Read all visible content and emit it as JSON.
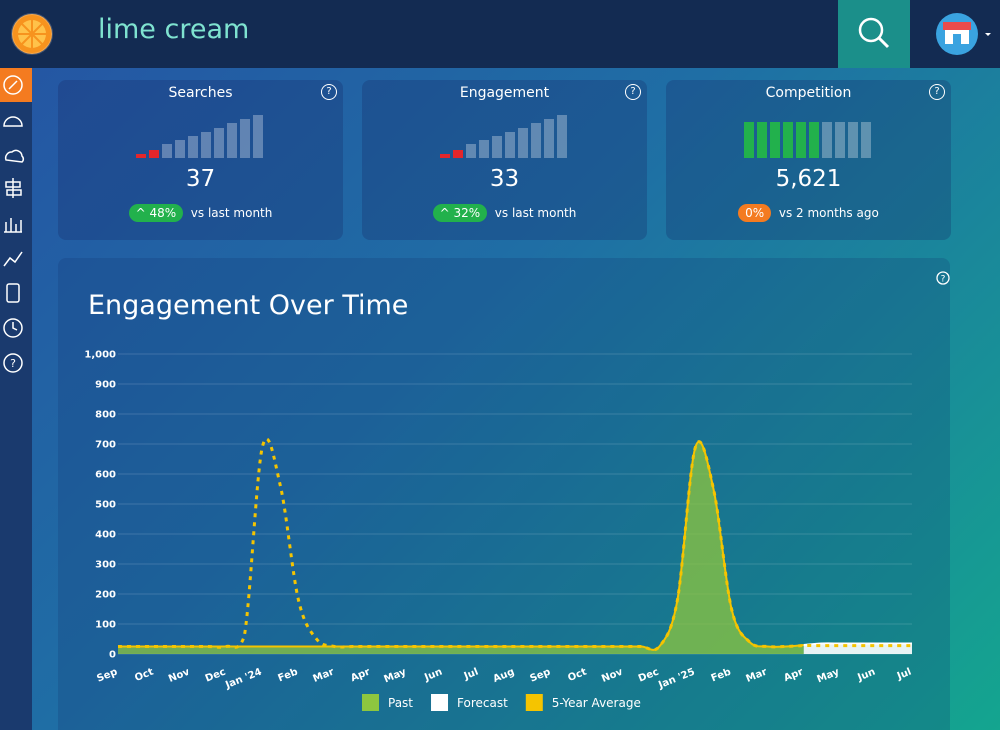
{
  "search": {
    "query": "lime cream"
  },
  "cards": [
    {
      "title": "Searches",
      "value": "37",
      "change": "48%",
      "comparison": "vs last month"
    },
    {
      "title": "Engagement",
      "value": "33",
      "change": "32%",
      "comparison": "vs last month"
    },
    {
      "title": "Competition",
      "value": "5,621",
      "change": "0%",
      "comparison": "vs 2 months ago"
    }
  ],
  "chart_data": {
    "type": "line",
    "title": "Engagement Over Time",
    "categories": [
      "Sep",
      null,
      "Oct",
      null,
      "Nov",
      null,
      "Dec",
      null,
      "Jan '24",
      null,
      "Feb",
      null,
      "Mar",
      null,
      "Apr",
      null,
      "May",
      null,
      "Jun",
      null,
      "Jul",
      null,
      "Aug",
      null,
      "Sep",
      null,
      "Oct",
      null,
      "Nov",
      null,
      "Dec",
      null,
      "Jan '25",
      null,
      "Feb",
      null,
      "Mar",
      null,
      "Apr",
      null,
      "May",
      null,
      "Jun",
      null,
      "Jul"
    ],
    "series": [
      {
        "name": "Past",
        "color": "#8dc63f",
        "values": [
          25,
          25,
          25,
          25,
          25,
          25,
          25,
          25,
          25,
          25,
          25,
          25,
          25,
          25,
          25,
          25,
          25,
          25,
          25,
          25,
          25,
          25,
          25,
          25,
          25,
          25,
          25,
          25,
          25,
          25,
          25,
          180,
          690,
          550,
          150,
          40,
          25,
          25,
          30,
          null,
          null,
          null,
          null,
          null,
          null
        ]
      },
      {
        "name": "Forecast",
        "color": "#ffffff",
        "values": [
          null,
          null,
          null,
          null,
          null,
          null,
          null,
          null,
          null,
          null,
          null,
          null,
          null,
          null,
          null,
          null,
          null,
          null,
          null,
          null,
          null,
          null,
          null,
          null,
          null,
          null,
          null,
          null,
          null,
          null,
          null,
          null,
          null,
          null,
          null,
          null,
          null,
          null,
          30,
          35,
          35,
          35,
          35,
          35,
          35
        ]
      },
      {
        "name": "5-Year Average",
        "color": "#f5c400",
        "values": [
          25,
          25,
          25,
          25,
          25,
          25,
          25,
          60,
          690,
          560,
          180,
          50,
          25,
          25,
          25,
          25,
          25,
          25,
          25,
          25,
          25,
          25,
          25,
          25,
          25,
          25,
          25,
          25,
          25,
          25,
          25,
          180,
          690,
          550,
          150,
          40,
          25,
          25,
          28,
          28,
          28,
          28,
          28,
          28,
          28
        ]
      }
    ],
    "ylim": [
      0,
      1000
    ],
    "yticks": [
      0,
      100,
      200,
      300,
      400,
      500,
      600,
      700,
      800,
      900,
      {
        "value": 1000,
        "label": "1,000"
      }
    ],
    "grid": true
  }
}
